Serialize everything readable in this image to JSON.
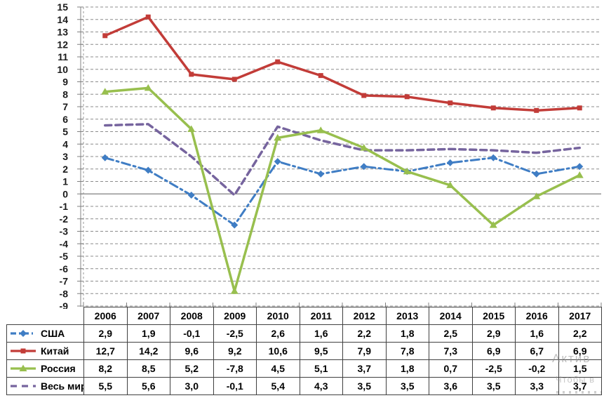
{
  "chart_data": {
    "type": "line",
    "title": "",
    "xlabel": "",
    "ylabel": "",
    "categories": [
      "2006",
      "2007",
      "2008",
      "2009",
      "2010",
      "2011",
      "2012",
      "2013",
      "2014",
      "2015",
      "2016",
      "2017"
    ],
    "series": [
      {
        "name": "США",
        "values": [
          2.9,
          1.9,
          -0.1,
          -2.5,
          2.6,
          1.6,
          2.2,
          1.8,
          2.5,
          2.9,
          1.6,
          2.2
        ],
        "color": "#3F7DC4",
        "dash": "dashdot",
        "marker": "diamond",
        "width": 3
      },
      {
        "name": "Китай",
        "values": [
          12.7,
          14.2,
          9.6,
          9.2,
          10.6,
          9.5,
          7.9,
          7.8,
          7.3,
          6.9,
          6.7,
          6.9
        ],
        "color": "#C23C38",
        "dash": "solid",
        "marker": "square",
        "width": 3.5
      },
      {
        "name": "Россия",
        "values": [
          8.2,
          8.5,
          5.2,
          -7.8,
          4.5,
          5.1,
          3.7,
          1.8,
          0.7,
          -2.5,
          -0.2,
          1.5
        ],
        "color": "#98BF4E",
        "dash": "solid",
        "marker": "triangle",
        "width": 3.5
      },
      {
        "name": "Весь мир",
        "values": [
          5.5,
          5.6,
          3.0,
          -0.1,
          5.4,
          4.3,
          3.5,
          3.5,
          3.6,
          3.5,
          3.3,
          3.7
        ],
        "color": "#76649E",
        "dash": "dashed",
        "marker": "none",
        "width": 3.5
      }
    ],
    "ylim": [
      -9,
      15
    ],
    "yticks": [
      -9,
      -8,
      -7,
      -6,
      -5,
      -4,
      -3,
      -2,
      -1,
      0,
      1,
      2,
      3,
      4,
      5,
      6,
      7,
      8,
      9,
      10,
      11,
      12,
      13,
      14,
      15
    ],
    "grid": "horizontal-dashed",
    "legend_position": "table-left-column"
  },
  "table": {
    "header_years": [
      "2006",
      "2007",
      "2008",
      "2009",
      "2010",
      "2011",
      "2012",
      "2013",
      "2014",
      "2015",
      "2016",
      "2017"
    ],
    "rows": [
      {
        "label": "США",
        "cells": [
          "2,9",
          "1,9",
          "-0,1",
          "-2,5",
          "2,6",
          "1,6",
          "2,2",
          "1,8",
          "2,5",
          "2,9",
          "1,6",
          "2,2"
        ]
      },
      {
        "label": "Китай",
        "cells": [
          "12,7",
          "14,2",
          "9,6",
          "9,2",
          "10,6",
          "9,5",
          "7,9",
          "7,8",
          "7,3",
          "6,9",
          "6,7",
          "6,9"
        ]
      },
      {
        "label": "Россия",
        "cells": [
          "8,2",
          "8,5",
          "5,2",
          "-7,8",
          "4,5",
          "5,1",
          "3,7",
          "1,8",
          "0,7",
          "-2,5",
          "-0,2",
          "1,5"
        ]
      },
      {
        "label": "Весь мир",
        "cells": [
          "5,5",
          "5,6",
          "3,0",
          "-0,1",
          "5,4",
          "4,3",
          "3,5",
          "3,5",
          "3,6",
          "3,5",
          "3,3",
          "3,7"
        ]
      }
    ]
  },
  "watermark": {
    "line1": "Актив",
    "line2": "Чтобы в"
  }
}
